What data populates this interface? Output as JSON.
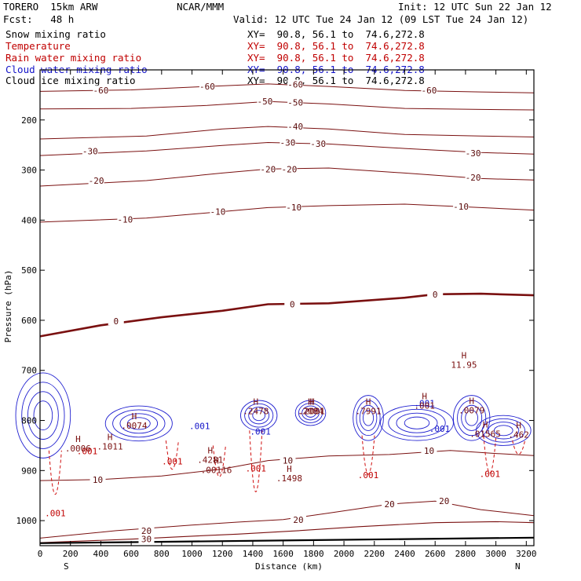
{
  "header": {
    "model": "TORERO  15km ARW",
    "center": "NCAR/MMM",
    "init": "Init: 12 UTC Sun 22 Jan 12",
    "fcst": "Fcst:   48 h",
    "valid": "Valid: 12 UTC Tue 24 Jan 12 (09 LST Tue 24 Jan 12)"
  },
  "fields": [
    {
      "name": "Snow mixing ratio",
      "xy": "XY=  90.8, 56.1 to  74.6,272.8",
      "color": "#000000"
    },
    {
      "name": "Temperature",
      "xy": "XY=  90.8, 56.1 to  74.6,272.8",
      "color": "#c00000"
    },
    {
      "name": "Rain water mixing ratio",
      "xy": "XY=  90.8, 56.1 to  74.6,272.8",
      "color": "#c00000"
    },
    {
      "name": "Cloud water mixing ratio",
      "xy": "XY=  90.8, 56.1 to  74.6,272.8",
      "color": "#1414c8"
    },
    {
      "name": "Cloud ice mixing ratio",
      "xy": "XY=  90.8, 56.1 to  74.6,272.8",
      "color": "#000000"
    }
  ],
  "chart_data": {
    "type": "cross-section contour",
    "xlabel": "Distance (km)",
    "ylabel": "Pressure (hPa)",
    "xlim": [
      0,
      3250
    ],
    "ylim": [
      1050,
      100
    ],
    "x_ticks": [
      0,
      200,
      400,
      600,
      800,
      1000,
      1200,
      1400,
      1600,
      1800,
      2000,
      2200,
      2400,
      2600,
      2800,
      3000,
      3200
    ],
    "y_ticks": [
      200,
      300,
      400,
      500,
      600,
      700,
      800,
      900,
      1000
    ],
    "left_end": "S",
    "right_end": "N",
    "temperature_isotherms": [
      {
        "level": -60,
        "points": [
          [
            0,
            143
          ],
          [
            600,
            140
          ],
          [
            1100,
            133
          ],
          [
            1500,
            128
          ],
          [
            1900,
            133
          ],
          [
            2400,
            141
          ],
          [
            2900,
            144
          ],
          [
            3250,
            146
          ]
        ],
        "labels": [
          [
            400,
            141
          ],
          [
            1100,
            133
          ],
          [
            1680,
            129
          ],
          [
            2560,
            141
          ]
        ]
      },
      {
        "level": -50,
        "points": [
          [
            0,
            178
          ],
          [
            600,
            177
          ],
          [
            1100,
            171
          ],
          [
            1500,
            163
          ],
          [
            1900,
            168
          ],
          [
            2400,
            177
          ],
          [
            2900,
            179
          ],
          [
            3250,
            180
          ]
        ],
        "labels": [
          [
            1480,
            163
          ],
          [
            1680,
            165
          ]
        ]
      },
      {
        "level": -40,
        "points": [
          [
            0,
            238
          ],
          [
            700,
            232
          ],
          [
            1200,
            218
          ],
          [
            1500,
            213
          ],
          [
            1900,
            218
          ],
          [
            2400,
            229
          ],
          [
            2900,
            232
          ],
          [
            3250,
            234
          ]
        ],
        "labels": [
          [
            1680,
            213
          ]
        ]
      },
      {
        "level": -30,
        "points": [
          [
            0,
            271
          ],
          [
            700,
            262
          ],
          [
            1200,
            251
          ],
          [
            1500,
            245
          ],
          [
            1900,
            248
          ],
          [
            2400,
            257
          ],
          [
            2900,
            265
          ],
          [
            3250,
            268
          ]
        ],
        "labels": [
          [
            330,
            262
          ],
          [
            1630,
            245
          ],
          [
            1830,
            247
          ],
          [
            2850,
            266
          ]
        ]
      },
      {
        "level": -20,
        "points": [
          [
            0,
            332
          ],
          [
            700,
            321
          ],
          [
            1200,
            306
          ],
          [
            1500,
            298
          ],
          [
            1900,
            296
          ],
          [
            2400,
            306
          ],
          [
            2900,
            317
          ],
          [
            3250,
            320
          ]
        ],
        "labels": [
          [
            370,
            321
          ],
          [
            1500,
            298
          ],
          [
            1640,
            298
          ],
          [
            2850,
            315
          ]
        ]
      },
      {
        "level": -10,
        "points": [
          [
            0,
            404
          ],
          [
            700,
            396
          ],
          [
            1200,
            383
          ],
          [
            1500,
            375
          ],
          [
            1900,
            371
          ],
          [
            2400,
            368
          ],
          [
            2900,
            375
          ],
          [
            3250,
            380
          ]
        ],
        "labels": [
          [
            560,
            399
          ],
          [
            1170,
            383
          ],
          [
            1670,
            374
          ],
          [
            2770,
            373
          ]
        ]
      },
      {
        "level": 0,
        "points": [
          [
            0,
            632
          ],
          [
            400,
            610
          ],
          [
            800,
            594
          ],
          [
            1200,
            581
          ],
          [
            1500,
            568
          ],
          [
            1900,
            566
          ],
          [
            2400,
            555
          ],
          [
            2600,
            548
          ],
          [
            2900,
            547
          ],
          [
            3250,
            550
          ]
        ],
        "labels": [
          [
            500,
            602
          ],
          [
            1660,
            568
          ],
          [
            2600,
            548
          ]
        ]
      },
      {
        "level": 10,
        "points": [
          [
            0,
            920
          ],
          [
            400,
            918
          ],
          [
            800,
            911
          ],
          [
            1200,
            897
          ],
          [
            1500,
            880
          ],
          [
            1900,
            871
          ],
          [
            2300,
            868
          ],
          [
            2700,
            860
          ],
          [
            3000,
            866
          ],
          [
            3250,
            870
          ]
        ],
        "labels": [
          [
            380,
            918
          ],
          [
            1630,
            880
          ],
          [
            2560,
            860
          ]
        ]
      },
      {
        "level": 20,
        "points": [
          [
            0,
            1035
          ],
          [
            500,
            1020
          ],
          [
            1000,
            1009
          ],
          [
            1300,
            1003
          ],
          [
            1600,
            998
          ],
          [
            1900,
            985
          ],
          [
            2300,
            967
          ],
          [
            2600,
            961
          ],
          [
            2900,
            978
          ],
          [
            3250,
            990
          ]
        ],
        "labels": [
          [
            700,
            1020
          ],
          [
            1700,
            998
          ],
          [
            2300,
            967
          ],
          [
            2660,
            961
          ]
        ]
      },
      {
        "level": 30,
        "points": [
          [
            0,
            1044
          ],
          [
            600,
            1037
          ],
          [
            1000,
            1031
          ],
          [
            1300,
            1027
          ],
          [
            1700,
            1020
          ],
          [
            2100,
            1012
          ],
          [
            2600,
            1004
          ],
          [
            3000,
            1002
          ],
          [
            3250,
            1004
          ]
        ],
        "labels": [
          [
            700,
            1037
          ]
        ]
      }
    ],
    "rain_labels": [
      {
        "text": ".001",
        "x": 100,
        "y": 991
      },
      {
        "text": ".001",
        "x": 870,
        "y": 888
      },
      {
        "text": ".001",
        "x": 1420,
        "y": 902
      },
      {
        "text": ".001",
        "x": 2160,
        "y": 915
      },
      {
        "text": ".001",
        "x": 2960,
        "y": 913
      },
      {
        "text": ".001",
        "x": 310,
        "y": 867
      }
    ],
    "cloud_water_labels": [
      {
        "text": ".001",
        "x": 1050,
        "y": 817
      },
      {
        "text": ".001",
        "x": 1450,
        "y": 828
      },
      {
        "text": ".001",
        "x": 2530,
        "y": 772
      },
      {
        "text": ".001",
        "x": 2630,
        "y": 823
      }
    ],
    "maxima": [
      {
        "text": "H",
        "value": ".0074",
        "x": 620,
        "y": 812
      },
      {
        "text": "H",
        "value": ".1011",
        "x": 460,
        "y": 853
      },
      {
        "text": "H",
        "value": ".0006",
        "x": 250,
        "y": 857
      },
      {
        "text": "H",
        "value": ".4281",
        "x": 1120,
        "y": 880
      },
      {
        "text": "H",
        "value": ".00116",
        "x": 1160,
        "y": 900
      },
      {
        "text": "H",
        "value": ".2478",
        "x": 1420,
        "y": 783
      },
      {
        "text": "H",
        "value": ".2084",
        "x": 1780,
        "y": 783
      },
      {
        "text": "H",
        "value": ".2081",
        "x": 1790,
        "y": 783
      },
      {
        "text": "H",
        "value": ".1498",
        "x": 1640,
        "y": 917
      },
      {
        "text": "H",
        "value": ".7991",
        "x": 2160,
        "y": 783
      },
      {
        "text": "H",
        "value": ".001",
        "x": 2530,
        "y": 772
      },
      {
        "text": "H",
        "value": ".0079",
        "x": 2840,
        "y": 781
      },
      {
        "text": "H",
        "value": "11.95",
        "x": 2790,
        "y": 690
      },
      {
        "text": "H",
        "value": ".01565",
        "x": 2930,
        "y": 828
      },
      {
        "text": "H",
        "value": ".462",
        "x": 3150,
        "y": 830
      }
    ]
  }
}
